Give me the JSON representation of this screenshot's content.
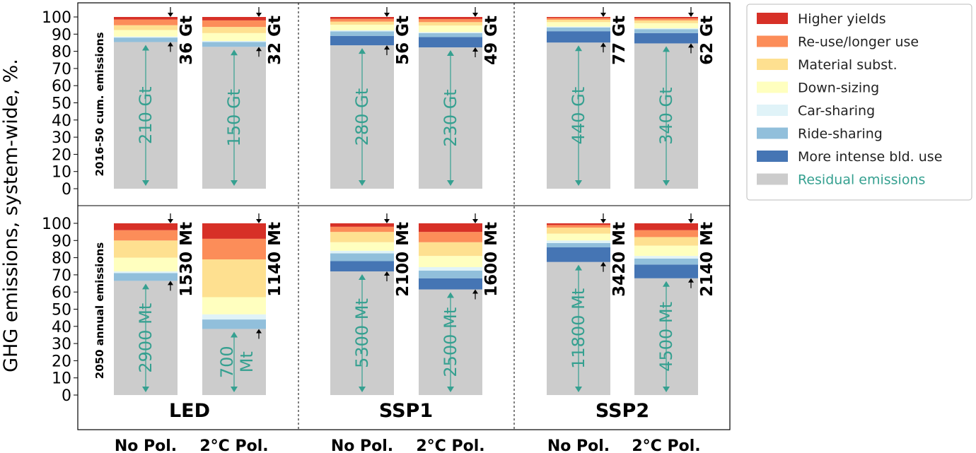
{
  "chart_data": {
    "type": "bar",
    "stacking": "stacked-percent",
    "ylabel": "GHG emissions, system-wide, %.",
    "ylim": [
      0,
      100
    ],
    "yticks": [
      0,
      10,
      20,
      30,
      40,
      50,
      60,
      70,
      80,
      90,
      100
    ],
    "scenarios": [
      "LED",
      "SSP1",
      "SSP2"
    ],
    "conditions": [
      "No Pol.",
      "2°C Pol."
    ],
    "legend": {
      "placement": "outside-right",
      "items": [
        {
          "key": "higher_yields",
          "label": "Higher yields",
          "color": "#d73027"
        },
        {
          "key": "reuse",
          "label": "Re-use/longer use",
          "color": "#fc8d59"
        },
        {
          "key": "material",
          "label": "Material subst.",
          "color": "#fee090"
        },
        {
          "key": "downsizing",
          "label": "Down-sizing",
          "color": "#ffffbf"
        },
        {
          "key": "carsharing",
          "label": "Car-sharing",
          "color": "#e0f3f8"
        },
        {
          "key": "ridesharing",
          "label": "Ride-sharing",
          "color": "#91bfdb"
        },
        {
          "key": "intense_bld",
          "label": "More intense bld. use",
          "color": "#4575b4"
        },
        {
          "key": "residual",
          "label": "Residual emissions",
          "color": "#cccccc",
          "text_color": "#35a090"
        }
      ]
    },
    "panels": [
      {
        "row_label": "2016-50 cum. emissions",
        "bars": [
          {
            "scenario": "LED",
            "condition": "No Pol.",
            "total_label": "36 Gt",
            "residual_label": "210 Gt",
            "segments": {
              "residual": 85.4,
              "intense_bld": 0,
              "ridesharing": 2.6,
              "carsharing": 0.6,
              "downsizing": 3.8,
              "material": 2.8,
              "reuse": 3.3,
              "higher_yields": 1.5
            }
          },
          {
            "scenario": "LED",
            "condition": "2°C Pol.",
            "total_label": "32 Gt",
            "residual_label": "150 Gt",
            "segments": {
              "residual": 82.6,
              "intense_bld": 0,
              "ridesharing": 2.8,
              "carsharing": 0.6,
              "downsizing": 4.6,
              "material": 3.6,
              "reuse": 3.8,
              "higher_yields": 2.0
            }
          },
          {
            "scenario": "SSP1",
            "condition": "No Pol.",
            "total_label": "56 Gt",
            "residual_label": "280 Gt",
            "segments": {
              "residual": 83.5,
              "intense_bld": 5.5,
              "ridesharing": 2.6,
              "carsharing": 0.6,
              "downsizing": 3.3,
              "material": 1.8,
              "reuse": 1.6,
              "higher_yields": 1.1
            }
          },
          {
            "scenario": "SSP1",
            "condition": "2°C Pol.",
            "total_label": "49 Gt",
            "residual_label": "230 Gt",
            "segments": {
              "residual": 82.3,
              "intense_bld": 6.0,
              "ridesharing": 2.3,
              "carsharing": 0.6,
              "downsizing": 3.8,
              "material": 2.0,
              "reuse": 1.8,
              "higher_yields": 1.2
            }
          },
          {
            "scenario": "SSP2",
            "condition": "No Pol.",
            "total_label": "77 Gt",
            "residual_label": "440 Gt",
            "segments": {
              "residual": 85.1,
              "intense_bld": 6.6,
              "ridesharing": 2.2,
              "carsharing": 0.5,
              "downsizing": 2.6,
              "material": 1.4,
              "reuse": 1.0,
              "higher_yields": 0.6
            }
          },
          {
            "scenario": "SSP2",
            "condition": "2°C Pol.",
            "total_label": "62 Gt",
            "residual_label": "340 Gt",
            "segments": {
              "residual": 84.6,
              "intense_bld": 6.0,
              "ridesharing": 2.3,
              "carsharing": 0.5,
              "downsizing": 3.0,
              "material": 1.6,
              "reuse": 1.2,
              "higher_yields": 0.8
            }
          }
        ]
      },
      {
        "row_label": "2050 annual emissions",
        "bars": [
          {
            "scenario": "LED",
            "condition": "No Pol.",
            "total_label": "1530 Mt",
            "residual_label": "2900 Mt",
            "segments": {
              "residual": 66.5,
              "intense_bld": 0,
              "ridesharing": 4.5,
              "carsharing": 1.0,
              "downsizing": 8.0,
              "material": 10.0,
              "reuse": 6.0,
              "higher_yields": 4.0
            }
          },
          {
            "scenario": "LED",
            "condition": "2°C Pol.",
            "total_label": "1140 Mt",
            "residual_label": "700 Mt",
            "segments": {
              "residual": 38.5,
              "intense_bld": 0,
              "ridesharing": 5.5,
              "carsharing": 3.0,
              "downsizing": 10.0,
              "material": 22.0,
              "reuse": 12.0,
              "higher_yields": 9.0
            }
          },
          {
            "scenario": "SSP1",
            "condition": "No Pol.",
            "total_label": "2100 Mt",
            "residual_label": "5300 Mt",
            "segments": {
              "residual": 72.0,
              "intense_bld": 6.0,
              "ridesharing": 4.5,
              "carsharing": 1.5,
              "downsizing": 5.0,
              "material": 6.0,
              "reuse": 3.0,
              "higher_yields": 2.0
            }
          },
          {
            "scenario": "SSP1",
            "condition": "2°C Pol.",
            "total_label": "1600 Mt",
            "residual_label": "2500 Mt",
            "segments": {
              "residual": 61.5,
              "intense_bld": 6.5,
              "ridesharing": 4.5,
              "carsharing": 2.0,
              "downsizing": 6.5,
              "material": 8.0,
              "reuse": 6.0,
              "higher_yields": 5.0
            }
          },
          {
            "scenario": "SSP2",
            "condition": "No Pol.",
            "total_label": "3420 Mt",
            "residual_label": "11800 Mt",
            "segments": {
              "residual": 77.5,
              "intense_bld": 8.5,
              "ridesharing": 2.5,
              "carsharing": 1.5,
              "downsizing": 4.0,
              "material": 3.5,
              "reuse": 1.5,
              "higher_yields": 1.0
            }
          },
          {
            "scenario": "SSP2",
            "condition": "2°C Pol.",
            "total_label": "2140 Mt",
            "residual_label": "4500 Mt",
            "segments": {
              "residual": 68.0,
              "intense_bld": 8.0,
              "ridesharing": 3.5,
              "carsharing": 1.5,
              "downsizing": 6.0,
              "material": 5.0,
              "reuse": 4.0,
              "higher_yields": 4.0
            }
          }
        ]
      }
    ]
  }
}
